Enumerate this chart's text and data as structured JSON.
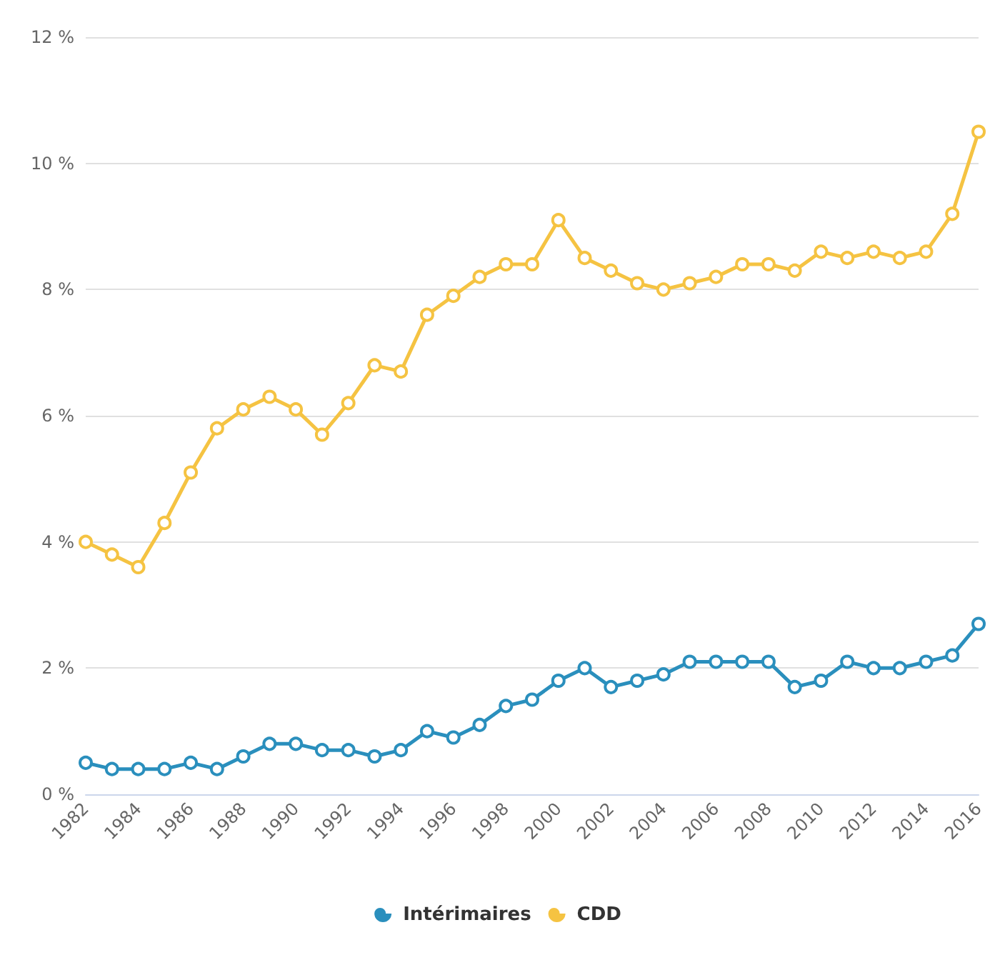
{
  "chart_data": {
    "type": "line",
    "categories": [
      "1982",
      null,
      "1984",
      null,
      "1986",
      null,
      "1988",
      null,
      "1990",
      null,
      "1992",
      null,
      "1994",
      null,
      "1996",
      null,
      "1998",
      null,
      "2000",
      null,
      "2002",
      null,
      "2004",
      null,
      "2006",
      null,
      "2008",
      null,
      "2010",
      null,
      "2012",
      null,
      "2014",
      null,
      "2016"
    ],
    "series": [
      {
        "name": "Intérimaires",
        "color": "#2a8fbd",
        "values": [
          0.5,
          0.4,
          0.4,
          0.4,
          0.5,
          0.4,
          0.6,
          0.8,
          0.8,
          0.7,
          0.7,
          0.6,
          0.7,
          1.0,
          0.9,
          1.1,
          1.4,
          1.5,
          1.8,
          2.0,
          1.7,
          1.8,
          1.9,
          2.1,
          2.1,
          2.1,
          2.1,
          1.7,
          1.8,
          2.1,
          2.0,
          2.0,
          2.1,
          2.2,
          2.7
        ]
      },
      {
        "name": "CDD",
        "color": "#f5c342",
        "values": [
          4.0,
          3.8,
          3.6,
          4.3,
          5.1,
          5.8,
          6.1,
          6.3,
          6.1,
          5.7,
          6.2,
          6.8,
          6.7,
          7.6,
          7.9,
          8.2,
          8.4,
          8.4,
          9.1,
          8.5,
          8.3,
          8.1,
          8.0,
          8.1,
          8.2,
          8.4,
          8.4,
          8.3,
          8.6,
          8.5,
          8.6,
          8.5,
          8.6,
          9.2,
          10.5
        ]
      }
    ],
    "ylim": [
      0,
      12
    ],
    "yticks": [
      {
        "value": 0,
        "label": "0 %"
      },
      {
        "value": 2,
        "label": "2 %"
      },
      {
        "value": 4,
        "label": "4 %"
      },
      {
        "value": 6,
        "label": "6 %"
      },
      {
        "value": 8,
        "label": "8 %"
      },
      {
        "value": 10,
        "label": "10 %"
      },
      {
        "value": 12,
        "label": "12 %"
      }
    ],
    "grid": "y",
    "legend": "bottom",
    "marker": "circle",
    "line_style": "solid"
  }
}
